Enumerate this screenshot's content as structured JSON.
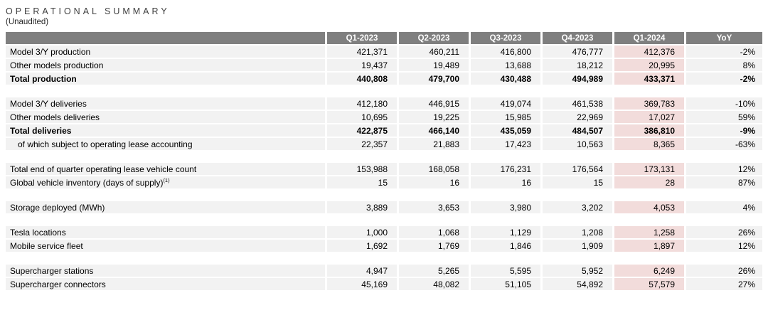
{
  "title": "OPERATIONAL SUMMARY",
  "subtitle": "(Unaudited)",
  "colors": {
    "header_bg": "#7f7f7f",
    "header_text": "#ffffff",
    "row_bg": "#f2f2f2",
    "highlight_bg": "#f2dcdb"
  },
  "table": {
    "columns": [
      "",
      "Q1-2023",
      "Q2-2023",
      "Q3-2023",
      "Q4-2023",
      "Q1-2024",
      "YoY"
    ],
    "highlight_column": "Q1-2024",
    "rows": [
      {
        "type": "data",
        "label": "Model 3/Y production",
        "values": [
          "421,371",
          "460,211",
          "416,800",
          "476,777",
          "412,376",
          "-2%"
        ]
      },
      {
        "type": "data",
        "label": "Other models production",
        "values": [
          "19,437",
          "19,489",
          "13,688",
          "18,212",
          "20,995",
          "8%"
        ]
      },
      {
        "type": "total",
        "label": "Total production",
        "values": [
          "440,808",
          "479,700",
          "430,488",
          "494,989",
          "433,371",
          "-2%"
        ]
      },
      {
        "type": "spacer"
      },
      {
        "type": "data",
        "label": "Model 3/Y deliveries",
        "values": [
          "412,180",
          "446,915",
          "419,074",
          "461,538",
          "369,783",
          "-10%"
        ]
      },
      {
        "type": "data",
        "label": "Other models deliveries",
        "values": [
          "10,695",
          "19,225",
          "15,985",
          "22,969",
          "17,027",
          "59%"
        ]
      },
      {
        "type": "total",
        "label": "Total deliveries",
        "values": [
          "422,875",
          "466,140",
          "435,059",
          "484,507",
          "386,810",
          "-9%"
        ]
      },
      {
        "type": "sub",
        "label": "of which subject to operating lease accounting",
        "values": [
          "22,357",
          "21,883",
          "17,423",
          "10,563",
          "8,365",
          "-63%"
        ]
      },
      {
        "type": "spacer"
      },
      {
        "type": "data",
        "label": "Total end of quarter operating lease vehicle count",
        "values": [
          "153,988",
          "168,058",
          "176,231",
          "176,564",
          "173,131",
          "12%"
        ]
      },
      {
        "type": "data",
        "label": "Global vehicle inventory (days of supply)",
        "label_sup": "(1)",
        "values": [
          "15",
          "16",
          "16",
          "15",
          "28",
          "87%"
        ]
      },
      {
        "type": "spacer"
      },
      {
        "type": "data",
        "label": "Storage deployed (MWh)",
        "values": [
          "3,889",
          "3,653",
          "3,980",
          "3,202",
          "4,053",
          "4%"
        ]
      },
      {
        "type": "spacer"
      },
      {
        "type": "data",
        "label": "Tesla locations",
        "values": [
          "1,000",
          "1,068",
          "1,129",
          "1,208",
          "1,258",
          "26%"
        ]
      },
      {
        "type": "data",
        "label": "Mobile service fleet",
        "values": [
          "1,692",
          "1,769",
          "1,846",
          "1,909",
          "1,897",
          "12%"
        ]
      },
      {
        "type": "spacer"
      },
      {
        "type": "data",
        "label": "Supercharger stations",
        "values": [
          "4,947",
          "5,265",
          "5,595",
          "5,952",
          "6,249",
          "26%"
        ]
      },
      {
        "type": "data",
        "label": "Supercharger connectors",
        "values": [
          "45,169",
          "48,082",
          "51,105",
          "54,892",
          "57,579",
          "27%"
        ]
      }
    ]
  }
}
